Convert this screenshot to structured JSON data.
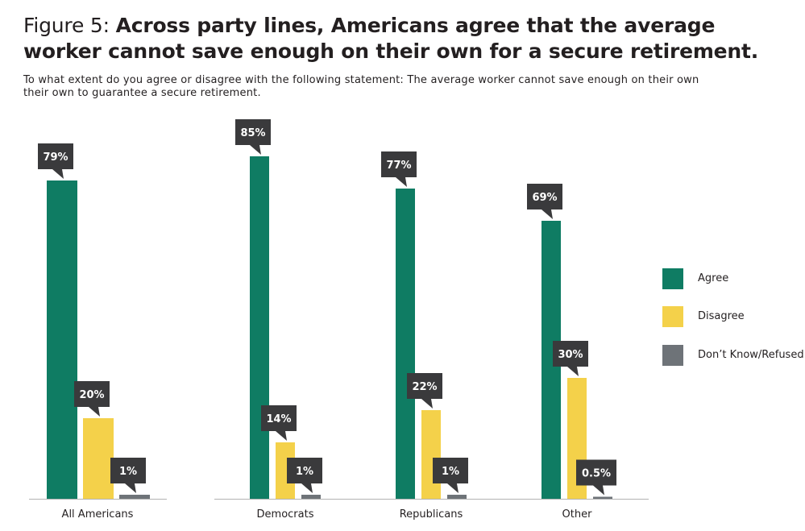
{
  "title_prefix": "Figure 5: ",
  "title_main": "Across party lines, Americans agree that the average worker cannot save enough on their own for a secure retirement.",
  "subtitle": "To what extent do you agree or disagree with the following statement: The average worker cannot save enough on their own their own to guarantee a secure retirement.",
  "colors": {
    "agree": "#0f7c63",
    "disagree": "#f4d14a",
    "dont_know": "#6e7378",
    "callout": "#3a3a3c",
    "axis": "#b3b3b3"
  },
  "chart_data": {
    "type": "bar",
    "categories": [
      "All Americans",
      "Democrats",
      "Republicans",
      "Other"
    ],
    "series": [
      {
        "name": "Agree",
        "values": [
          79,
          85,
          77,
          69
        ],
        "labels": [
          "79%",
          "85%",
          "77%",
          "69%"
        ]
      },
      {
        "name": "Disagree",
        "values": [
          20,
          14,
          22,
          30
        ],
        "labels": [
          "20%",
          "14%",
          "22%",
          "30%"
        ]
      },
      {
        "name": "Don’t Know/Refused",
        "values": [
          1,
          1,
          1,
          0.5
        ],
        "labels": [
          "1%",
          "1%",
          "1%",
          "0.5%"
        ]
      }
    ],
    "legend_position": "right",
    "ylim": [
      0,
      100
    ],
    "grid": false
  }
}
